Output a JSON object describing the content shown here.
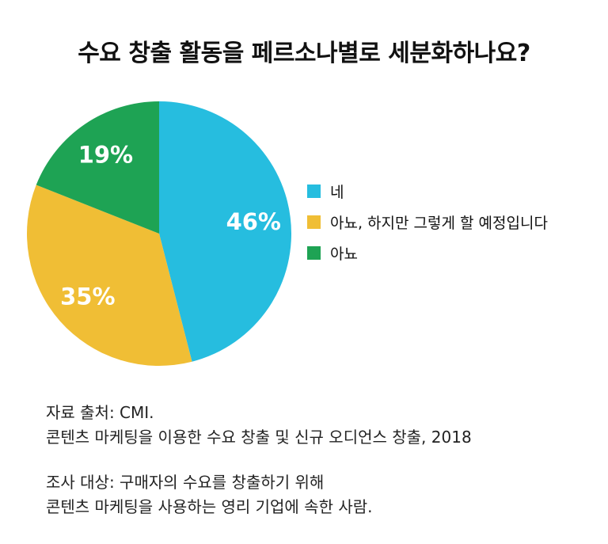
{
  "title": "수요 창출 활동을 페르소나별로 세분화하나요?",
  "chart_data": {
    "type": "pie",
    "title": "수요 창출 활동을 페르소나별로 세분화하나요?",
    "slices": [
      {
        "label": "네",
        "value": 46,
        "display": "46%",
        "color": "#26bddf"
      },
      {
        "label": "아뇨, 하지만 그렇게 할 예정입니다",
        "value": 35,
        "display": "35%",
        "color": "#f0be35"
      },
      {
        "label": "아뇨",
        "value": 19,
        "display": "19%",
        "color": "#1ea354"
      }
    ],
    "start_position": "top",
    "direction": "clockwise",
    "legend_placement": "right"
  },
  "source": {
    "line1": "자료 출처: CMI.",
    "line2": "콘텐츠 마케팅을 이용한 수요 창출 및 신규 오디언스 창출, 2018"
  },
  "survey": {
    "line1": "조사 대상: 구매자의 수요를 창출하기 위해",
    "line2": "콘텐츠 마케팅을 사용하는 영리 기업에 속한 사람."
  }
}
